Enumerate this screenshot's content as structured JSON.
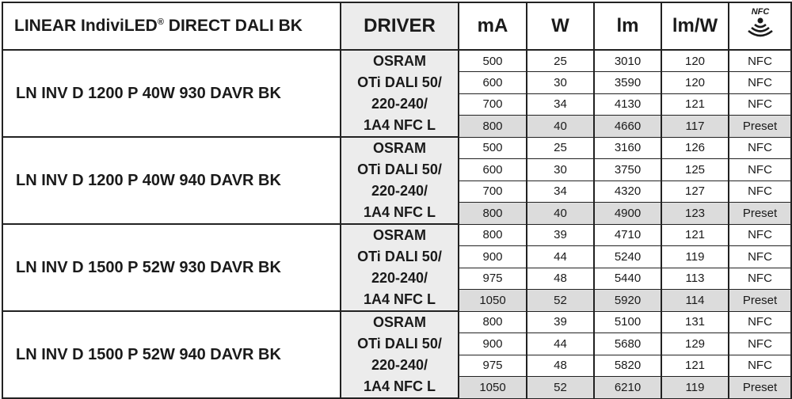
{
  "header": {
    "product_title": "LINEAR IndiviLED",
    "product_title_reg": "®",
    "product_title_suffix": " DIRECT DALI BK",
    "driver": "DRIVER",
    "ma": "mA",
    "w": "W",
    "lm": "lm",
    "lmw": "lm/W",
    "nfc_icon_label": "NFC",
    "nfc_icon": "nfc-signal-icon"
  },
  "colors": {
    "driver_bg": "#ececec",
    "preset_bg": "#dcdcdc",
    "border": "#222222"
  },
  "groups": [
    {
      "name": "LN INV D 1200 P 40W 930 DAVR BK",
      "driver": [
        "OSRAM",
        "OTi DALI 50/",
        "220-240/",
        "1A4 NFC L"
      ],
      "rows": [
        [
          "500",
          "25",
          "3010",
          "120",
          "NFC"
        ],
        [
          "600",
          "30",
          "3590",
          "120",
          "NFC"
        ],
        [
          "700",
          "34",
          "4130",
          "121",
          "NFC"
        ],
        [
          "800",
          "40",
          "4660",
          "117",
          "Preset"
        ]
      ]
    },
    {
      "name": "LN INV D 1200 P 40W 940 DAVR BK",
      "driver": [
        "OSRAM",
        "OTi DALI 50/",
        "220-240/",
        "1A4 NFC L"
      ],
      "rows": [
        [
          "500",
          "25",
          "3160",
          "126",
          "NFC"
        ],
        [
          "600",
          "30",
          "3750",
          "125",
          "NFC"
        ],
        [
          "700",
          "34",
          "4320",
          "127",
          "NFC"
        ],
        [
          "800",
          "40",
          "4900",
          "123",
          "Preset"
        ]
      ]
    },
    {
      "name": "LN INV D 1500 P 52W 930 DAVR BK",
      "driver": [
        "OSRAM",
        "OTi DALI 50/",
        "220-240/",
        "1A4 NFC L"
      ],
      "rows": [
        [
          "800",
          "39",
          "4710",
          "121",
          "NFC"
        ],
        [
          "900",
          "44",
          "5240",
          "119",
          "NFC"
        ],
        [
          "975",
          "48",
          "5440",
          "113",
          "NFC"
        ],
        [
          "1050",
          "52",
          "5920",
          "114",
          "Preset"
        ]
      ]
    },
    {
      "name": "LN INV D 1500 P 52W 940 DAVR BK",
      "driver": [
        "OSRAM",
        "OTi DALI 50/",
        "220-240/",
        "1A4 NFC L"
      ],
      "rows": [
        [
          "800",
          "39",
          "5100",
          "131",
          "NFC"
        ],
        [
          "900",
          "44",
          "5680",
          "129",
          "NFC"
        ],
        [
          "975",
          "48",
          "5820",
          "121",
          "NFC"
        ],
        [
          "1050",
          "52",
          "6210",
          "119",
          "Preset"
        ]
      ]
    }
  ]
}
